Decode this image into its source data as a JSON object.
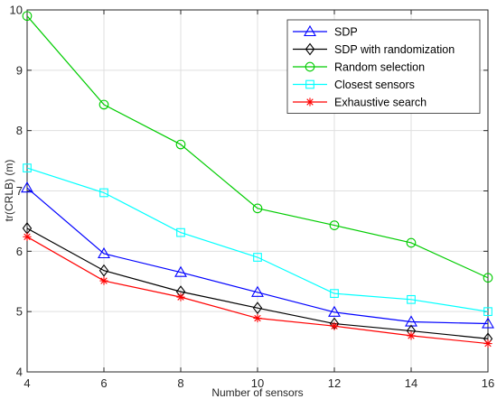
{
  "chart_data": {
    "type": "line",
    "title": "",
    "xlabel": "Number of sensors",
    "ylabel": "tr(CRLB) (m)",
    "x": [
      4,
      6,
      8,
      10,
      12,
      14,
      16
    ],
    "xlim": [
      4,
      16
    ],
    "ylim": [
      4,
      10
    ],
    "xticks": [
      "4",
      "6",
      "8",
      "10",
      "12",
      "14",
      "16"
    ],
    "yticks": [
      "4",
      "5",
      "6",
      "7",
      "8",
      "9",
      "10"
    ],
    "grid": true,
    "legend_position": "top-right",
    "series": [
      {
        "name": "SDP",
        "values": [
          7.05,
          5.96,
          5.65,
          5.32,
          4.99,
          4.83,
          4.8
        ],
        "color": "#0000ff",
        "marker": "triangle"
      },
      {
        "name": "SDP with randomization",
        "values": [
          6.38,
          5.68,
          5.33,
          5.06,
          4.8,
          4.68,
          4.55
        ],
        "color": "#000000",
        "marker": "diamond"
      },
      {
        "name": "Random selection",
        "values": [
          9.9,
          8.43,
          7.77,
          6.71,
          6.43,
          6.14,
          5.56
        ],
        "color": "#00cc00",
        "marker": "circle"
      },
      {
        "name": "Closest sensors",
        "values": [
          7.38,
          6.97,
          6.31,
          5.9,
          5.3,
          5.2,
          5.0
        ],
        "color": "#00ffff",
        "marker": "square"
      },
      {
        "name": "Exhaustive search",
        "values": [
          6.24,
          5.51,
          5.24,
          4.89,
          4.76,
          4.6,
          4.47
        ],
        "color": "#ff0000",
        "marker": "asterisk"
      }
    ]
  }
}
